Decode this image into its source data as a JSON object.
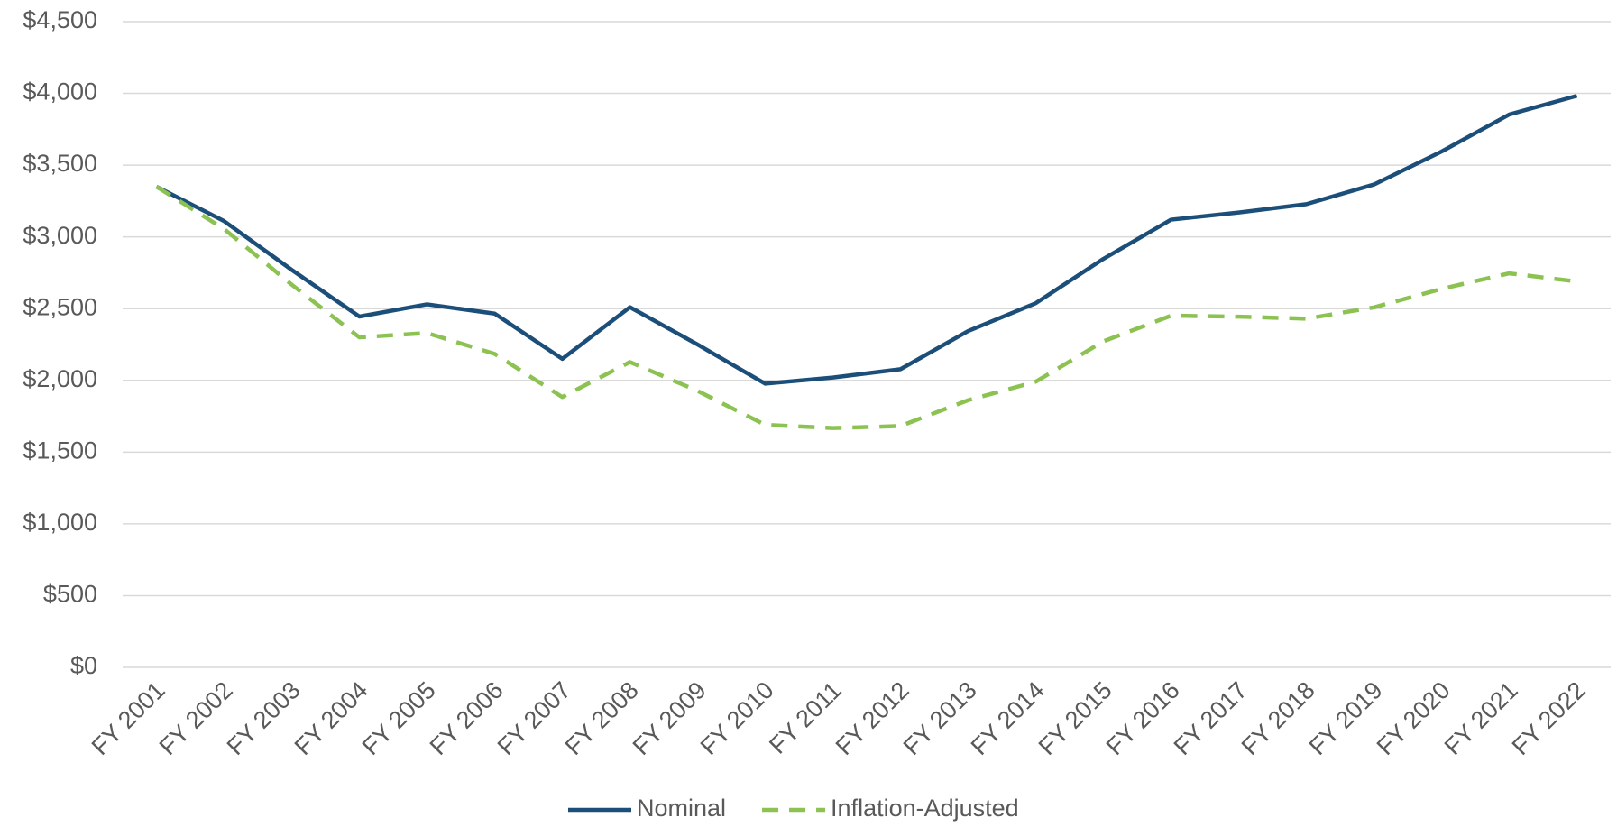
{
  "chart_data": {
    "type": "line",
    "categories": [
      "FY 2001",
      "FY 2002",
      "FY 2003",
      "FY 2004",
      "FY 2005",
      "FY 2006",
      "FY 2007",
      "FY 2008",
      "FY 2009",
      "FY 2010",
      "FY 2011",
      "FY 2012",
      "FY 2013",
      "FY 2014",
      "FY 2015",
      "FY 2016",
      "FY 2017",
      "FY 2018",
      "FY 2019",
      "FY 2020",
      "FY 2021",
      "FY 2022"
    ],
    "series": [
      {
        "name": "Nominal",
        "color": "#1b4f7a",
        "dash": false,
        "values": [
          3350,
          3110,
          2770,
          2445,
          2530,
          2465,
          2150,
          2510,
          2250,
          1977,
          2020,
          2078,
          2344,
          2538,
          2847,
          3120,
          3170,
          3228,
          3365,
          3595,
          3853,
          3983
        ]
      },
      {
        "name": "Inflation-Adjusted",
        "color": "#8cc251",
        "dash": true,
        "values": [
          3350,
          3055,
          2667,
          2300,
          2330,
          2185,
          1884,
          2128,
          1927,
          1690,
          1668,
          1682,
          1862,
          1991,
          2272,
          2451,
          2444,
          2430,
          2509,
          2638,
          2746,
          2689
        ]
      }
    ],
    "ylim": [
      0,
      4500
    ],
    "yticks": [
      {
        "value": 0,
        "label": "$0"
      },
      {
        "value": 500,
        "label": "$500"
      },
      {
        "value": 1000,
        "label": "$1,000"
      },
      {
        "value": 1500,
        "label": "$1,500"
      },
      {
        "value": 2000,
        "label": "$2,000"
      },
      {
        "value": 2500,
        "label": "$2,500"
      },
      {
        "value": 3000,
        "label": "$3,000"
      },
      {
        "value": 3500,
        "label": "$3,500"
      },
      {
        "value": 4000,
        "label": "$4,000"
      },
      {
        "value": 4500,
        "label": "$4,500"
      }
    ],
    "grid": true,
    "legend": "bottom"
  }
}
